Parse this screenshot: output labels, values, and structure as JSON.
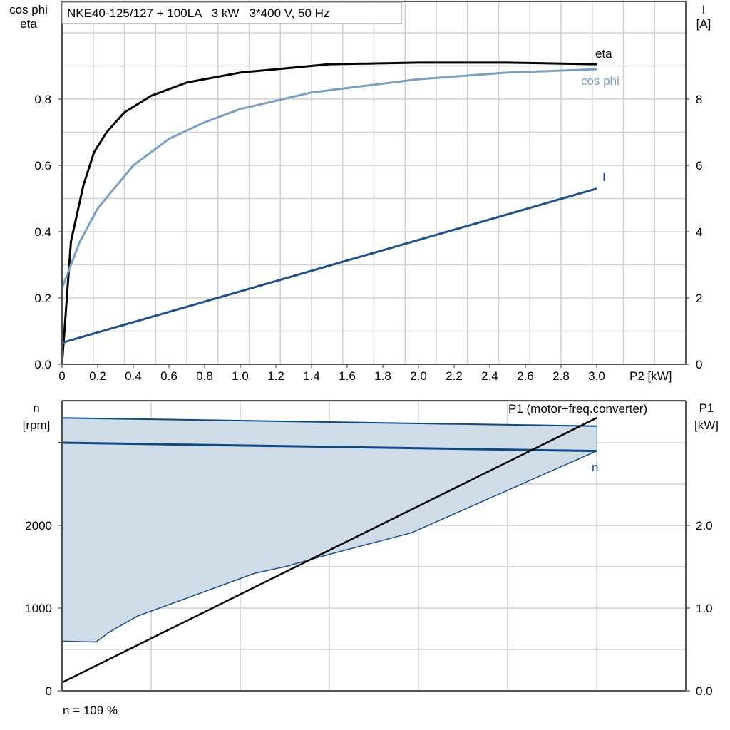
{
  "chart_data": [
    {
      "type": "line",
      "title": "NKE40-125/127 + 100LA   3 kW   3*400 V, 50 Hz",
      "xlabel": "P2 [kW]",
      "ylabel_left": [
        "cos phi",
        "eta"
      ],
      "ylabel_right": [
        "I",
        "[A]"
      ],
      "xlim": [
        0,
        3.5
      ],
      "ylim_left": [
        0,
        1.1
      ],
      "ylim_right": [
        0,
        11
      ],
      "grid": true,
      "x_ticks": [
        "0",
        "0.2",
        "0.4",
        "0.6",
        "0.8",
        "1.0",
        "1.2",
        "1.4",
        "1.6",
        "1.8",
        "2.0",
        "2.2",
        "2.4",
        "2.6",
        "2.8",
        "3.0"
      ],
      "y_ticks_left": [
        "0.0",
        "0.2",
        "0.4",
        "0.6",
        "0.8"
      ],
      "y_ticks_right": [
        "0",
        "2",
        "4",
        "6",
        "8"
      ],
      "series": [
        {
          "name": "eta",
          "axis": "left",
          "color": "#000000",
          "x": [
            0,
            0.05,
            0.12,
            0.18,
            0.25,
            0.35,
            0.5,
            0.7,
            1.0,
            1.5,
            2.0,
            2.5,
            3.0
          ],
          "y": [
            0,
            0.37,
            0.54,
            0.64,
            0.7,
            0.76,
            0.81,
            0.85,
            0.88,
            0.905,
            0.91,
            0.91,
            0.905
          ]
        },
        {
          "name": "cos phi",
          "axis": "left",
          "color": "#7a9fc0",
          "x": [
            0,
            0.1,
            0.2,
            0.4,
            0.6,
            0.8,
            1.0,
            1.4,
            2.0,
            2.5,
            3.0
          ],
          "y": [
            0.23,
            0.37,
            0.47,
            0.6,
            0.68,
            0.73,
            0.77,
            0.82,
            0.86,
            0.88,
            0.89
          ]
        },
        {
          "name": "I",
          "axis": "right",
          "color": "#1f5087",
          "x": [
            0,
            3.0
          ],
          "y": [
            0.65,
            5.3
          ]
        }
      ]
    },
    {
      "type": "line",
      "xlim": [
        0,
        3.5
      ],
      "ylabel_left": [
        "n",
        "[rpm]"
      ],
      "ylabel_right": [
        "P1",
        "[kW]"
      ],
      "ylim_left": [
        0,
        3500
      ],
      "ylim_right": [
        0,
        3.5
      ],
      "grid": true,
      "y_ticks_left": [
        "0",
        "1000",
        "2000"
      ],
      "y_ticks_right": [
        "0.0",
        "1.0",
        "2.0"
      ],
      "note": "n = 109 %",
      "envelope": {
        "color": "#d0dce8",
        "upper": {
          "x": [
            0,
            3.0
          ],
          "y": [
            3300,
            3200
          ]
        },
        "lower": {
          "x": [
            0,
            0.19,
            0.27,
            0.42,
            1.08,
            1.25,
            1.5,
            1.96,
            3.0
          ],
          "y": [
            600,
            590,
            715,
            900,
            1420,
            1500,
            1650,
            1910,
            2900
          ]
        }
      },
      "series": [
        {
          "name": "n",
          "axis": "left",
          "color": "#0d4883",
          "x": [
            0,
            3.0
          ],
          "y": [
            3000,
            2900
          ]
        },
        {
          "name": "P1 (motor+freq.converter)",
          "axis": "right",
          "color": "#000000",
          "x": [
            0,
            3.0
          ],
          "y": [
            0.1,
            3.3
          ]
        }
      ]
    }
  ]
}
